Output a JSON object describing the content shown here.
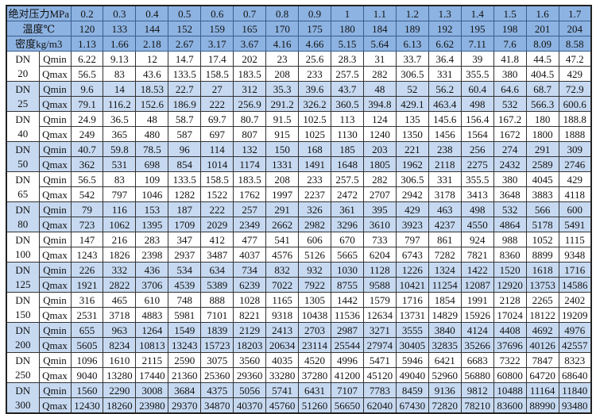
{
  "header": {
    "pressure_label": "绝对压力MPa",
    "temperature_label": "温度℃",
    "density_label": "密度kg/m3",
    "pressure": [
      "0.2",
      "0.3",
      "0.4",
      "0.5",
      "0.6",
      "0.7",
      "0.8",
      "0.9",
      "1",
      "1.1",
      "1.2",
      "1.3",
      "1.4",
      "1.5",
      "1.6",
      "1.7"
    ],
    "temperature": [
      "120",
      "133",
      "144",
      "152",
      "159",
      "165",
      "170",
      "175",
      "180",
      "184",
      "189",
      "192",
      "195",
      "198",
      "201",
      "204"
    ],
    "density": [
      "1.13",
      "1.66",
      "2.18",
      "2.67",
      "3.17",
      "3.67",
      "4.16",
      "4.66",
      "5.15",
      "5.64",
      "6.13",
      "6.62",
      "7.11",
      "7.6",
      "8.09",
      "8.58"
    ]
  },
  "colors": {
    "header_bg": "#8db3e2",
    "band_bg": "#c6d9f1",
    "plain_bg": "#ffffff"
  },
  "rows": [
    {
      "dn_label": "DN",
      "size": "20",
      "qmin_label": "Qmin",
      "qmax_label": "Qmax",
      "qmin": [
        "6.22",
        "9.13",
        "12",
        "14.7",
        "17.4",
        "202",
        "23",
        "25.6",
        "28.3",
        "31",
        "33.7",
        "36.4",
        "39",
        "41.8",
        "44.5",
        "47.2"
      ],
      "qmax": [
        "56.5",
        "83",
        "43.6",
        "133.5",
        "158.5",
        "183.5",
        "208",
        "233",
        "257.5",
        "282",
        "306.5",
        "331",
        "355.5",
        "380",
        "404.5",
        "429"
      ]
    },
    {
      "dn_label": "DN",
      "size": "25",
      "qmin_label": "Qmin",
      "qmax_label": "Qmax",
      "qmin": [
        "9.6",
        "14",
        "18.53",
        "22.7",
        "27",
        "312",
        "35.3",
        "39.6",
        "43.7",
        "48",
        "52",
        "56.2",
        "60.4",
        "64.6",
        "68.7",
        "72.9"
      ],
      "qmax": [
        "79.1",
        "116.2",
        "152.6",
        "186.9",
        "222",
        "256.9",
        "291.2",
        "326.2",
        "360.5",
        "394.8",
        "429.1",
        "463.4",
        "498",
        "532",
        "566.3",
        "600.6"
      ]
    },
    {
      "dn_label": "DN",
      "size": "40",
      "qmin_label": "Qmin",
      "qmax_label": "Qmax",
      "qmin": [
        "24.9",
        "36.5",
        "48",
        "58.7",
        "69.7",
        "80.7",
        "91.5",
        "102.5",
        "113",
        "124",
        "135",
        "145.6",
        "156.4",
        "167.2",
        "180",
        "188.8"
      ],
      "qmax": [
        "249",
        "365",
        "480",
        "587",
        "697",
        "807",
        "915",
        "1025",
        "1130",
        "1240",
        "1350",
        "1456",
        "1564",
        "1672",
        "1800",
        "1888"
      ]
    },
    {
      "dn_label": "DN",
      "size": "50",
      "qmin_label": "Qmin",
      "qmax_label": "Qmax",
      "qmin": [
        "40.7",
        "59.8",
        "78.5",
        "96",
        "114",
        "132",
        "150",
        "168",
        "185",
        "203",
        "221",
        "238",
        "256",
        "274",
        "291",
        "309"
      ],
      "qmax": [
        "362",
        "531",
        "698",
        "854",
        "1014",
        "1174",
        "1331",
        "1491",
        "1648",
        "1805",
        "1962",
        "2118",
        "2275",
        "2432",
        "2589",
        "2746"
      ]
    },
    {
      "dn_label": "DN",
      "size": "65",
      "qmin_label": "Qmin",
      "qmax_label": "Qmax",
      "qmin": [
        "56.5",
        "83",
        "109",
        "133.5",
        "158.5",
        "183.5",
        "208",
        "233",
        "257.5",
        "282",
        "306.5",
        "331",
        "355.5",
        "380",
        "4045",
        "429"
      ],
      "qmax": [
        "542",
        "797",
        "1046",
        "1282",
        "1522",
        "1762",
        "1997",
        "2237",
        "2472",
        "2707",
        "2942",
        "3178",
        "3413",
        "3648",
        "3883",
        "4118"
      ]
    },
    {
      "dn_label": "DN",
      "size": "80",
      "qmin_label": "Qmin",
      "qmax_label": "Qmax",
      "qmin": [
        "79",
        "116",
        "153",
        "187",
        "222",
        "257",
        "291",
        "326",
        "361",
        "395",
        "429",
        "463",
        "498",
        "532",
        "566",
        "600"
      ],
      "qmax": [
        "723",
        "1062",
        "1395",
        "1709",
        "2029",
        "2349",
        "2662",
        "2982",
        "3296",
        "3610",
        "3923",
        "4237",
        "4550",
        "4864",
        "5178",
        "5491"
      ]
    },
    {
      "dn_label": "DN",
      "size": "100",
      "qmin_label": "Qmin",
      "qmax_label": "Qmax",
      "qmin": [
        "147",
        "216",
        "283",
        "347",
        "412",
        "477",
        "541",
        "606",
        "670",
        "733",
        "797",
        "861",
        "924",
        "988",
        "1052",
        "1115"
      ],
      "qmax": [
        "1243",
        "1826",
        "2398",
        "2937",
        "3487",
        "4037",
        "4576",
        "5126",
        "5665",
        "6204",
        "6743",
        "7282",
        "7821",
        "8360",
        "8899",
        "9348"
      ]
    },
    {
      "dn_label": "DN",
      "size": "125",
      "qmin_label": "Qmin",
      "qmax_label": "Qmax",
      "qmin": [
        "226",
        "332",
        "436",
        "534",
        "634",
        "734",
        "832",
        "932",
        "1030",
        "1128",
        "1226",
        "1324",
        "1422",
        "1520",
        "1618",
        "1716"
      ],
      "qmax": [
        "1921",
        "2822",
        "3706",
        "4539",
        "5389",
        "6239",
        "7022",
        "7922",
        "8755",
        "9588",
        "10421",
        "11254",
        "12087",
        "12920",
        "13753",
        "14586"
      ]
    },
    {
      "dn_label": "DN",
      "size": "150",
      "qmin_label": "Qmin",
      "qmax_label": "Qmax",
      "qmin": [
        "316",
        "465",
        "610",
        "748",
        "888",
        "1028",
        "1165",
        "1305",
        "1442",
        "1579",
        "1716",
        "1854",
        "1991",
        "2128",
        "2265",
        "2402"
      ],
      "qmax": [
        "2531",
        "3718",
        "4883",
        "5981",
        "7101",
        "8221",
        "9318",
        "10438",
        "11536",
        "12634",
        "13731",
        "14829",
        "15926",
        "17024",
        "18122",
        "19209"
      ]
    },
    {
      "dn_label": "DN",
      "size": "200",
      "qmin_label": "Qmin",
      "qmax_label": "Qmax",
      "qmin": [
        "655",
        "963",
        "1264",
        "1549",
        "1839",
        "2129",
        "2413",
        "2703",
        "2987",
        "3271",
        "3555",
        "3840",
        "4124",
        "4408",
        "4692",
        "4976"
      ],
      "qmax": [
        "5605",
        "8234",
        "10813",
        "13243",
        "15723",
        "18203",
        "20634",
        "23114",
        "25544",
        "27974",
        "30405",
        "32835",
        "35266",
        "37696",
        "40126",
        "42557"
      ]
    },
    {
      "dn_label": "DN",
      "size": "250",
      "qmin_label": "Qmin",
      "qmax_label": "Qmax",
      "qmin": [
        "1096",
        "1610",
        "2115",
        "2590",
        "3075",
        "3560",
        "4035",
        "4520",
        "4996",
        "5471",
        "5946",
        "6421",
        "6683",
        "7322",
        "7847",
        "8323"
      ],
      "qmax": [
        "9040",
        "13280",
        "17440",
        "21360",
        "25360",
        "29360",
        "33280",
        "37280",
        "41200",
        "45120",
        "49040",
        "52960",
        "56880",
        "60800",
        "64720",
        "68640"
      ]
    },
    {
      "dn_label": "DN",
      "size": "300",
      "qmin_label": "Qmin",
      "qmax_label": "Qmax",
      "qmin": [
        "1560",
        "2290",
        "3008",
        "3684",
        "4375",
        "5056",
        "5741",
        "6431",
        "7107",
        "7783",
        "8459",
        "9136",
        "9812",
        "10488",
        "11164",
        "11840"
      ],
      "qmax": [
        "12430",
        "18260",
        "23980",
        "29370",
        "34870",
        "40370",
        "45760",
        "51260",
        "56650",
        "62040",
        "67430",
        "72820",
        "78210",
        "83600",
        "88990",
        "93480"
      ]
    }
  ]
}
